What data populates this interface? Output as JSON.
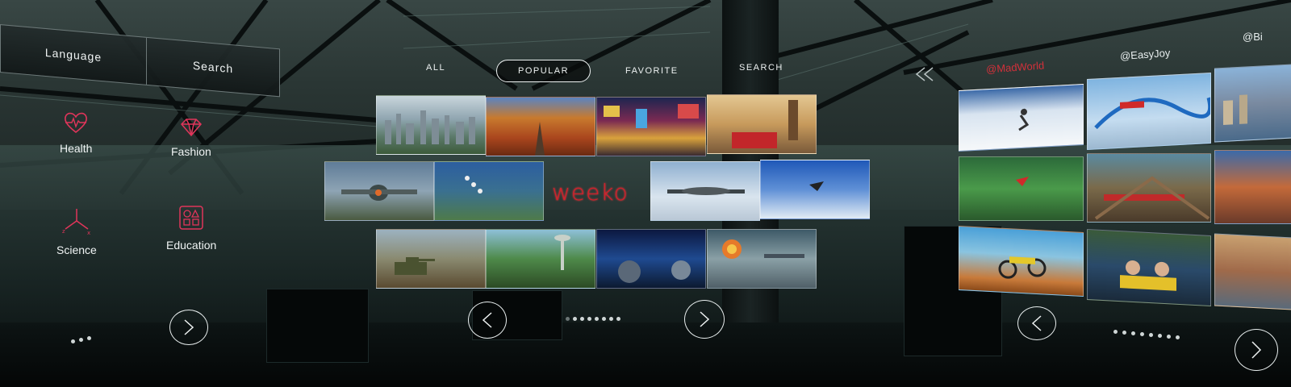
{
  "left_panel": {
    "language_label": "Language",
    "search_label": "Search",
    "categories": [
      {
        "label": "Health",
        "icon": "heart-pulse-icon"
      },
      {
        "label": "Fashion",
        "icon": "diamond-icon"
      },
      {
        "label": "Science",
        "icon": "xyz-axes-icon"
      },
      {
        "label": "Education",
        "icon": "shapes-icon"
      }
    ],
    "page_indicator": {
      "pages": 3,
      "current": 1
    },
    "next_icon": "chevron-right-icon"
  },
  "center_panel": {
    "tabs": [
      {
        "label": "ALL",
        "active": false
      },
      {
        "label": "POPULAR",
        "active": true
      },
      {
        "label": "FAVORITE",
        "active": false
      },
      {
        "label": "SEARCH",
        "active": false
      }
    ],
    "logo": "weeko",
    "tiles": [
      "city-skyline",
      "autumn-forest",
      "times-square",
      "london-big-ben",
      "vintage-fighter-plane",
      "skydivers-formation",
      "propeller-plane-clouds",
      "wingsuit-flyer",
      "battle-tanks",
      "fantasy-landscape",
      "space-scene",
      "air-combat-explosion"
    ],
    "page_indicator": {
      "pages": 8,
      "current": 1
    },
    "prev_icon": "chevron-left-icon",
    "next_icon": "chevron-right-icon"
  },
  "right_panel": {
    "back_icon": "double-chevron-left-icon",
    "users": [
      {
        "name": "@MadWorld",
        "active": true
      },
      {
        "name": "@EasyJoy",
        "active": false
      },
      {
        "name": "@Bi",
        "active": false
      }
    ],
    "tiles": [
      "skier",
      "roller-coaster-blue",
      "coastal-city",
      "wingsuit-canyon",
      "roller-coaster-wooden",
      "desert-sunset",
      "motocross",
      "coaster-riders",
      "venice-canal"
    ],
    "page_indicator": {
      "pages": 8,
      "current": 1
    },
    "prev_icon": "chevron-left-icon",
    "next_icon": "chevron-right-icon"
  },
  "colors": {
    "accent_red": "#d2303a",
    "text_light": "#e8eeee",
    "icon_pink": "#e0355a"
  }
}
